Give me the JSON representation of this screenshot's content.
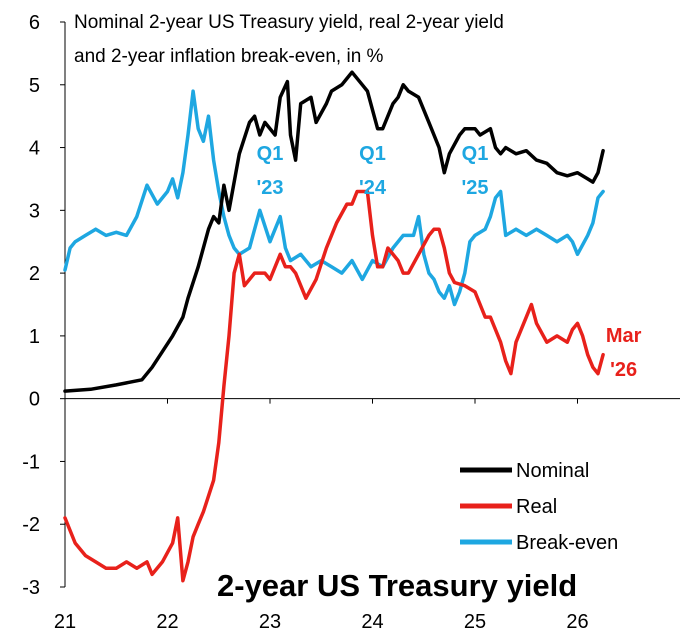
{
  "chart_data": {
    "type": "line",
    "title_lines": [
      "Nominal 2-year US Treasury yield, real 2-year yield",
      "and 2-year inflation break-even, in %"
    ],
    "big_title": "2-year US Treasury yield",
    "x_ticks": [
      "21",
      "22",
      "23",
      "24",
      "25",
      "26"
    ],
    "xlim": [
      2021.0,
      2027.0
    ],
    "ylim": [
      -3,
      6
    ],
    "y_ticks": [
      "6",
      "5",
      "4",
      "3",
      "2",
      "1",
      "0",
      "-1",
      "-2",
      "-3"
    ],
    "grid": false,
    "legend_placement": "bottom-right",
    "annotations": [
      {
        "lines": [
          "Q1",
          "'23"
        ],
        "x": 2023.0,
        "y": 3.8,
        "color": "#1EA7E1"
      },
      {
        "lines": [
          "Q1",
          "'24"
        ],
        "x": 2024.0,
        "y": 3.8,
        "color": "#1EA7E1"
      },
      {
        "lines": [
          "Q1",
          "'25"
        ],
        "x": 2025.0,
        "y": 3.8,
        "color": "#1EA7E1"
      },
      {
        "lines": [
          "Mar",
          "'26"
        ],
        "x": 2026.45,
        "y": 0.9,
        "color": "#E8211B"
      }
    ],
    "series": [
      {
        "name": "Nominal",
        "color": "#000000",
        "x": [
          2021.0,
          2021.25,
          2021.5,
          2021.75,
          2021.85,
          2021.95,
          2022.05,
          2022.15,
          2022.2,
          2022.3,
          2022.4,
          2022.45,
          2022.5,
          2022.55,
          2022.6,
          2022.7,
          2022.8,
          2022.85,
          2022.9,
          2022.95,
          2023.05,
          2023.1,
          2023.17,
          2023.2,
          2023.25,
          2023.3,
          2023.4,
          2023.45,
          2023.55,
          2023.6,
          2023.7,
          2023.75,
          2023.8,
          2023.9,
          2023.95,
          2024.05,
          2024.1,
          2024.2,
          2024.25,
          2024.3,
          2024.35,
          2024.45,
          2024.55,
          2024.65,
          2024.7,
          2024.75,
          2024.85,
          2024.9,
          2025.0,
          2025.05,
          2025.15,
          2025.2,
          2025.25,
          2025.3,
          2025.4,
          2025.5,
          2025.6,
          2025.7,
          2025.8,
          2025.9,
          2026.0,
          2026.1,
          2026.15,
          2026.2,
          2026.25
        ],
        "values": [
          0.12,
          0.15,
          0.22,
          0.3,
          0.5,
          0.75,
          1.0,
          1.3,
          1.6,
          2.1,
          2.7,
          2.9,
          2.8,
          3.4,
          3.0,
          3.9,
          4.4,
          4.5,
          4.2,
          4.4,
          4.2,
          4.8,
          5.05,
          4.2,
          3.8,
          4.7,
          4.8,
          4.4,
          4.7,
          4.9,
          5.0,
          5.1,
          5.2,
          5.0,
          4.9,
          4.3,
          4.3,
          4.7,
          4.8,
          5.0,
          4.9,
          4.8,
          4.4,
          4.0,
          3.6,
          3.9,
          4.2,
          4.3,
          4.3,
          4.2,
          4.3,
          4.0,
          3.9,
          4.0,
          3.9,
          3.95,
          3.8,
          3.75,
          3.6,
          3.55,
          3.6,
          3.5,
          3.45,
          3.6,
          3.95
        ]
      },
      {
        "name": "Real",
        "color": "#E8211B",
        "x": [
          2021.0,
          2021.1,
          2021.2,
          2021.3,
          2021.4,
          2021.5,
          2021.6,
          2021.7,
          2021.8,
          2021.85,
          2021.95,
          2022.05,
          2022.1,
          2022.15,
          2022.2,
          2022.25,
          2022.3,
          2022.35,
          2022.45,
          2022.5,
          2022.55,
          2022.6,
          2022.65,
          2022.7,
          2022.75,
          2022.85,
          2022.95,
          2023.0,
          2023.1,
          2023.15,
          2023.2,
          2023.25,
          2023.35,
          2023.45,
          2023.55,
          2023.65,
          2023.75,
          2023.8,
          2023.85,
          2023.95,
          2024.0,
          2024.05,
          2024.1,
          2024.15,
          2024.25,
          2024.3,
          2024.35,
          2024.45,
          2024.55,
          2024.6,
          2024.65,
          2024.7,
          2024.75,
          2024.8,
          2024.9,
          2025.0,
          2025.1,
          2025.15,
          2025.2,
          2025.25,
          2025.3,
          2025.35,
          2025.4,
          2025.5,
          2025.55,
          2025.6,
          2025.7,
          2025.8,
          2025.9,
          2025.95,
          2026.0,
          2026.05,
          2026.1,
          2026.15,
          2026.2,
          2026.25
        ],
        "values": [
          -1.9,
          -2.3,
          -2.5,
          -2.6,
          -2.7,
          -2.7,
          -2.6,
          -2.7,
          -2.6,
          -2.8,
          -2.6,
          -2.3,
          -1.9,
          -2.9,
          -2.6,
          -2.2,
          -2.0,
          -1.8,
          -1.3,
          -0.7,
          0.2,
          1.0,
          2.0,
          2.3,
          1.8,
          2.0,
          2.0,
          1.9,
          2.3,
          2.1,
          2.1,
          2.0,
          1.6,
          1.9,
          2.4,
          2.8,
          3.1,
          3.1,
          3.3,
          3.3,
          2.6,
          2.1,
          2.1,
          2.4,
          2.2,
          2.0,
          2.0,
          2.3,
          2.6,
          2.7,
          2.7,
          2.4,
          2.0,
          1.85,
          1.8,
          1.7,
          1.3,
          1.3,
          1.1,
          0.9,
          0.6,
          0.4,
          0.9,
          1.3,
          1.5,
          1.2,
          0.9,
          1.0,
          0.9,
          1.1,
          1.2,
          1.0,
          0.7,
          0.5,
          0.4,
          0.7
        ]
      },
      {
        "name": "Break-even",
        "color": "#1EA7E1",
        "x": [
          2021.0,
          2021.05,
          2021.1,
          2021.2,
          2021.3,
          2021.4,
          2021.5,
          2021.6,
          2021.7,
          2021.8,
          2021.9,
          2022.0,
          2022.05,
          2022.1,
          2022.15,
          2022.2,
          2022.25,
          2022.3,
          2022.35,
          2022.4,
          2022.45,
          2022.5,
          2022.55,
          2022.6,
          2022.65,
          2022.7,
          2022.8,
          2022.9,
          2023.0,
          2023.1,
          2023.15,
          2023.2,
          2023.3,
          2023.4,
          2023.5,
          2023.6,
          2023.7,
          2023.8,
          2023.9,
          2024.0,
          2024.1,
          2024.2,
          2024.3,
          2024.4,
          2024.45,
          2024.5,
          2024.55,
          2024.6,
          2024.65,
          2024.7,
          2024.75,
          2024.8,
          2024.85,
          2024.9,
          2024.95,
          2025.0,
          2025.1,
          2025.15,
          2025.2,
          2025.25,
          2025.3,
          2025.4,
          2025.5,
          2025.6,
          2025.7,
          2025.8,
          2025.9,
          2025.95,
          2026.0,
          2026.1,
          2026.15,
          2026.2,
          2026.25
        ],
        "values": [
          2.05,
          2.4,
          2.5,
          2.6,
          2.7,
          2.6,
          2.65,
          2.6,
          2.9,
          3.4,
          3.1,
          3.3,
          3.5,
          3.2,
          3.6,
          4.2,
          4.9,
          4.3,
          4.1,
          4.5,
          3.8,
          3.3,
          2.9,
          2.6,
          2.4,
          2.3,
          2.4,
          3.0,
          2.5,
          2.9,
          2.4,
          2.2,
          2.3,
          2.1,
          2.2,
          2.1,
          2.0,
          2.2,
          1.9,
          2.2,
          2.1,
          2.4,
          2.6,
          2.6,
          2.9,
          2.3,
          2.0,
          1.9,
          1.7,
          1.6,
          1.8,
          1.5,
          1.7,
          2.0,
          2.5,
          2.6,
          2.7,
          2.9,
          3.2,
          3.3,
          2.6,
          2.7,
          2.6,
          2.7,
          2.6,
          2.5,
          2.6,
          2.5,
          2.3,
          2.6,
          2.8,
          3.2,
          3.3
        ]
      }
    ]
  }
}
